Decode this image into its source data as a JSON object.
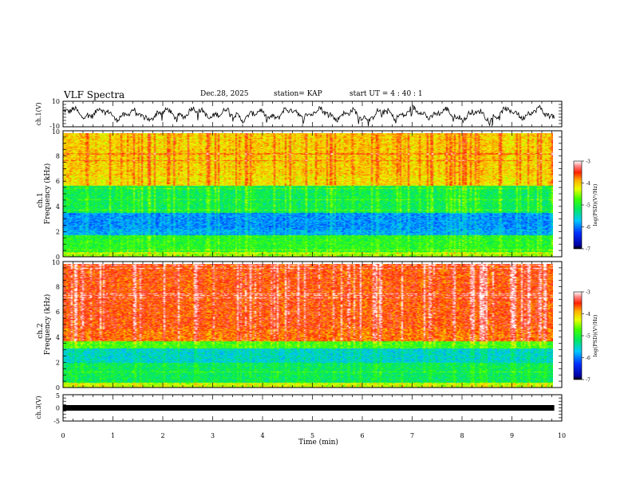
{
  "header": {
    "title": "VLF Spectra",
    "date": "Dec.28, 2025",
    "station": "station= KAP",
    "start": "start  UT  =   4 : 40 : 1"
  },
  "chart_data": [
    {
      "type": "line",
      "name": "ch1-waveform",
      "ylabel": "ch.1(V)",
      "ylim": [
        -10,
        10
      ],
      "yticks": [
        "10",
        "-10"
      ],
      "xlim": [
        0,
        10
      ],
      "data_extent_min": [
        0,
        9.85
      ]
    },
    {
      "type": "heatmap",
      "name": "ch1-spectrogram",
      "ylabel": "ch.1\nFrequency (kHz)",
      "ylim": [
        0,
        10
      ],
      "yticks": [
        "10",
        "8",
        "6",
        "4",
        "2",
        "0"
      ],
      "xlim": [
        0,
        10
      ],
      "colorbar": {
        "label": "log(PSD)(V²/Hz)",
        "ticks": [
          "-3",
          "-4",
          "-5",
          "-6",
          "-7"
        ],
        "range": [
          -7,
          -3
        ]
      }
    },
    {
      "type": "heatmap",
      "name": "ch2-spectrogram",
      "ylabel": "ch.2\nFrequency (kHz)",
      "ylim": [
        0,
        10
      ],
      "yticks": [
        "10",
        "8",
        "6",
        "4",
        "2",
        "0"
      ],
      "xlim": [
        0,
        10
      ],
      "colorbar": {
        "label": "log(PSD)(V²/Hz)",
        "ticks": [
          "-3",
          "-4",
          "-5",
          "-6",
          "-7"
        ],
        "range": [
          -7,
          -3
        ]
      }
    },
    {
      "type": "line",
      "name": "ch3-waveform",
      "ylabel": "ch.3(V)",
      "ylim": [
        -5,
        5
      ],
      "yticks": [
        "5",
        "0",
        "-5"
      ],
      "xlim": [
        0,
        10
      ],
      "level": 0
    }
  ],
  "xaxis": {
    "label": "Time  (min)",
    "ticks": [
      "0",
      "1",
      "2",
      "3",
      "4",
      "5",
      "6",
      "7",
      "8",
      "9",
      "10"
    ]
  },
  "labels": {
    "ch1_wave": "ch.1(V)",
    "ch1_spec_a": "ch.1",
    "ch1_spec_b": "Frequency (kHz)",
    "ch2_spec_a": "ch.2",
    "ch2_spec_b": "Frequency (kHz)",
    "ch3_wave": "ch.3(V)",
    "cbar_label": "log(PSD)(V²/Hz)"
  }
}
